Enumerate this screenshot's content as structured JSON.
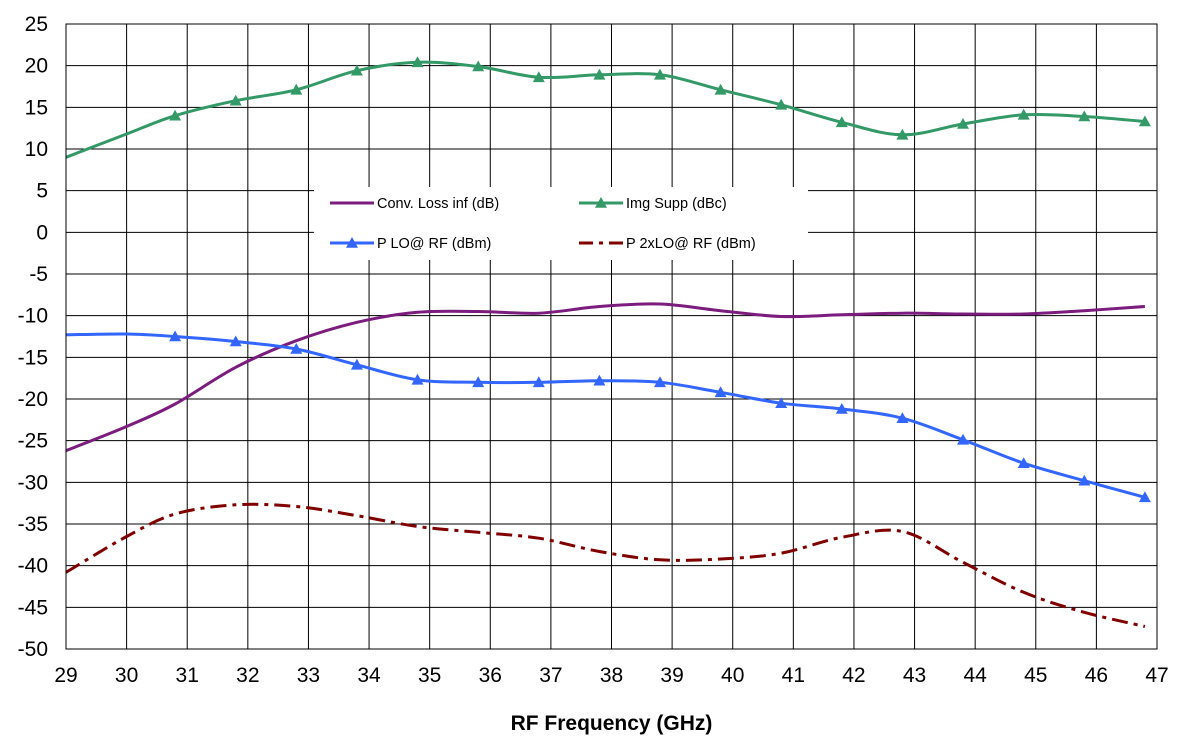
{
  "chart_data": {
    "type": "line",
    "title": "",
    "xlabel": "RF Frequency (GHz)",
    "ylabel": "",
    "xlim": [
      29,
      47
    ],
    "ylim": [
      -50,
      25
    ],
    "x_ticks": [
      29,
      30,
      31,
      32,
      33,
      34,
      35,
      36,
      37,
      38,
      39,
      40,
      41,
      42,
      43,
      44,
      45,
      46,
      47
    ],
    "y_ticks": [
      -50,
      -45,
      -40,
      -35,
      -30,
      -25,
      -20,
      -15,
      -10,
      -5,
      0,
      5,
      10,
      15,
      20,
      25
    ],
    "grid": true,
    "legend_position": "center",
    "series": [
      {
        "name": "Conv. Loss inf (dB)",
        "color": "#7b1c7e",
        "style": "solid",
        "marker": "none",
        "points": [
          [
            29,
            -26.2
          ],
          [
            30,
            -23.3
          ],
          [
            30.8,
            -20.6
          ],
          [
            31.8,
            -16.2
          ],
          [
            32.8,
            -13.0
          ],
          [
            33.8,
            -10.8
          ],
          [
            34.8,
            -9.6
          ],
          [
            35.8,
            -9.5
          ],
          [
            36.8,
            -9.7
          ],
          [
            37.8,
            -8.9
          ],
          [
            38.8,
            -8.6
          ],
          [
            39.8,
            -9.4
          ],
          [
            40.8,
            -10.1
          ],
          [
            41.8,
            -9.9
          ],
          [
            42.8,
            -9.7
          ],
          [
            43.8,
            -9.8
          ],
          [
            44.8,
            -9.8
          ],
          [
            45.8,
            -9.4
          ],
          [
            46.8,
            -8.9
          ]
        ]
      },
      {
        "name": "Img Supp (dBc)",
        "color": "#339966",
        "style": "solid",
        "marker": "triangle",
        "points": [
          [
            29,
            9.0
          ],
          [
            30,
            11.8
          ],
          [
            30.8,
            14.0
          ],
          [
            31.8,
            15.8
          ],
          [
            32.8,
            17.1
          ],
          [
            33.8,
            19.4
          ],
          [
            34.8,
            20.4
          ],
          [
            35.8,
            19.9
          ],
          [
            36.8,
            18.6
          ],
          [
            37.8,
            18.9
          ],
          [
            38.8,
            18.9
          ],
          [
            39.8,
            17.1
          ],
          [
            40.8,
            15.3
          ],
          [
            41.8,
            13.2
          ],
          [
            42.8,
            11.7
          ],
          [
            43.8,
            13.0
          ],
          [
            44.8,
            14.1
          ],
          [
            45.8,
            13.9
          ],
          [
            46.8,
            13.3
          ]
        ]
      },
      {
        "name": "P LO@ RF (dBm)",
        "color": "#3366ff",
        "style": "solid",
        "marker": "triangle",
        "points": [
          [
            29,
            -12.3
          ],
          [
            30,
            -12.2
          ],
          [
            30.8,
            -12.5
          ],
          [
            31.8,
            -13.1
          ],
          [
            32.8,
            -14.0
          ],
          [
            33.8,
            -15.9
          ],
          [
            34.8,
            -17.7
          ],
          [
            35.8,
            -18.0
          ],
          [
            36.8,
            -18.0
          ],
          [
            37.8,
            -17.8
          ],
          [
            38.8,
            -18.0
          ],
          [
            39.8,
            -19.2
          ],
          [
            40.8,
            -20.5
          ],
          [
            41.8,
            -21.2
          ],
          [
            42.8,
            -22.3
          ],
          [
            43.8,
            -24.9
          ],
          [
            44.8,
            -27.7
          ],
          [
            45.8,
            -29.8
          ],
          [
            46.8,
            -31.8
          ]
        ]
      },
      {
        "name": "P 2xLO@ RF (dBm)",
        "color": "#800000",
        "style": "dashdot",
        "marker": "none",
        "points": [
          [
            29,
            -40.8
          ],
          [
            30,
            -36.5
          ],
          [
            30.8,
            -33.8
          ],
          [
            31.8,
            -32.7
          ],
          [
            32.8,
            -32.9
          ],
          [
            33.8,
            -34.0
          ],
          [
            34.8,
            -35.3
          ],
          [
            35.8,
            -36.0
          ],
          [
            36.8,
            -36.7
          ],
          [
            37.8,
            -38.3
          ],
          [
            38.8,
            -39.3
          ],
          [
            39.8,
            -39.2
          ],
          [
            40.8,
            -38.5
          ],
          [
            41.8,
            -36.6
          ],
          [
            42.8,
            -35.9
          ],
          [
            43.8,
            -39.6
          ],
          [
            44.8,
            -43.2
          ],
          [
            45.8,
            -45.6
          ],
          [
            46.8,
            -47.3
          ]
        ]
      }
    ]
  }
}
